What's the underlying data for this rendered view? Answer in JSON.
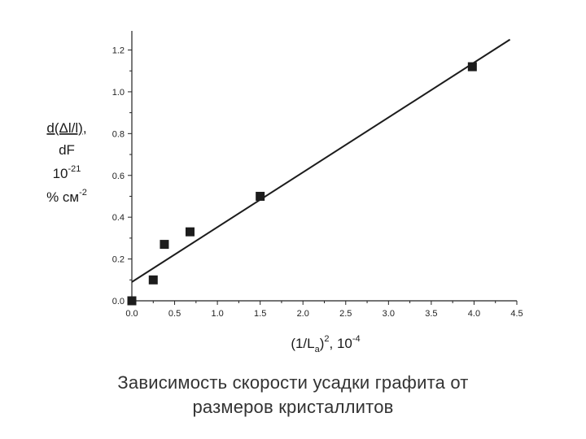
{
  "chart_data": {
    "type": "scatter",
    "x_ticks": [
      "0.0",
      "0.5",
      "1.0",
      "1.5",
      "2.0",
      "2.5",
      "3.0",
      "3.5",
      "4.0",
      "4.5"
    ],
    "y_ticks": [
      "0.0",
      "0.2",
      "0.4",
      "0.6",
      "0.8",
      "1.0",
      "1.2"
    ],
    "xlim": [
      0,
      4.5
    ],
    "ylim": [
      0,
      1.3
    ],
    "points": [
      {
        "x": 0.0,
        "y": 0.0
      },
      {
        "x": 0.25,
        "y": 0.1
      },
      {
        "x": 0.38,
        "y": 0.27
      },
      {
        "x": 0.68,
        "y": 0.33
      },
      {
        "x": 1.5,
        "y": 0.5
      },
      {
        "x": 3.98,
        "y": 1.12
      }
    ],
    "fit_line": {
      "x1": 0.0,
      "y1": 0.09,
      "x2": 4.42,
      "y2": 1.25
    },
    "ylabel": {
      "line1": "d(Δl/l),",
      "line2": "dF",
      "line3_base": "10",
      "line3_sup": "-21",
      "line4_base": "% см",
      "line4_sup": "-2"
    },
    "xlabel": {
      "part1": "(1/L",
      "sub": "a",
      "part2": ")",
      "sup1": "2",
      "part3": ", 10",
      "sup2": "-4"
    },
    "grid": false,
    "marker_color": "#1c1c1c",
    "line_color": "#1c1c1c"
  },
  "caption": {
    "line1": "Зависимость скорости усадки графита от",
    "line2": "размеров кристаллитов"
  }
}
